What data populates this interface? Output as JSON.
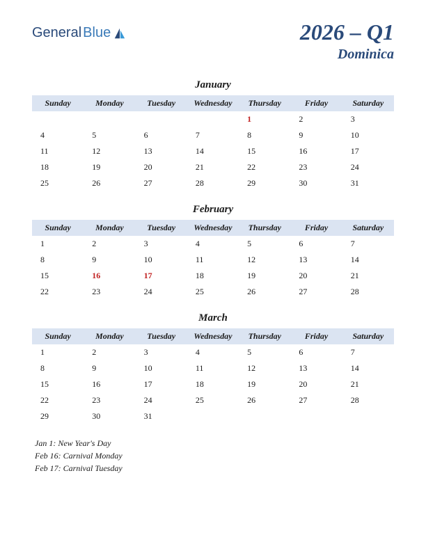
{
  "logo": {
    "text1": "General",
    "text2": "Blue"
  },
  "title": {
    "quarter": "2026 – Q1",
    "country": "Dominica"
  },
  "colors": {
    "header_bg": "#dbe4f2",
    "text": "#1a1a1a",
    "title_color": "#2a4a7a",
    "holiday_color": "#c02020",
    "background": "#ffffff"
  },
  "day_headers": [
    "Sunday",
    "Monday",
    "Tuesday",
    "Wednesday",
    "Thursday",
    "Friday",
    "Saturday"
  ],
  "months": [
    {
      "name": "January",
      "weeks": [
        [
          "",
          "",
          "",
          "",
          "1",
          "2",
          "3"
        ],
        [
          "4",
          "5",
          "6",
          "7",
          "8",
          "9",
          "10"
        ],
        [
          "11",
          "12",
          "13",
          "14",
          "15",
          "16",
          "17"
        ],
        [
          "18",
          "19",
          "20",
          "21",
          "22",
          "23",
          "24"
        ],
        [
          "25",
          "26",
          "27",
          "28",
          "29",
          "30",
          "31"
        ]
      ],
      "holidays": [
        [
          0,
          4
        ]
      ]
    },
    {
      "name": "February",
      "weeks": [
        [
          "1",
          "2",
          "3",
          "4",
          "5",
          "6",
          "7"
        ],
        [
          "8",
          "9",
          "10",
          "11",
          "12",
          "13",
          "14"
        ],
        [
          "15",
          "16",
          "17",
          "18",
          "19",
          "20",
          "21"
        ],
        [
          "22",
          "23",
          "24",
          "25",
          "26",
          "27",
          "28"
        ]
      ],
      "holidays": [
        [
          2,
          1
        ],
        [
          2,
          2
        ]
      ]
    },
    {
      "name": "March",
      "weeks": [
        [
          "1",
          "2",
          "3",
          "4",
          "5",
          "6",
          "7"
        ],
        [
          "8",
          "9",
          "10",
          "11",
          "12",
          "13",
          "14"
        ],
        [
          "15",
          "16",
          "17",
          "18",
          "19",
          "20",
          "21"
        ],
        [
          "22",
          "23",
          "24",
          "25",
          "26",
          "27",
          "28"
        ],
        [
          "29",
          "30",
          "31",
          "",
          "",
          "",
          ""
        ]
      ],
      "holidays": []
    }
  ],
  "holiday_list": [
    "Jan 1: New Year's Day",
    "Feb 16: Carnival Monday",
    "Feb 17: Carnival Tuesday"
  ]
}
